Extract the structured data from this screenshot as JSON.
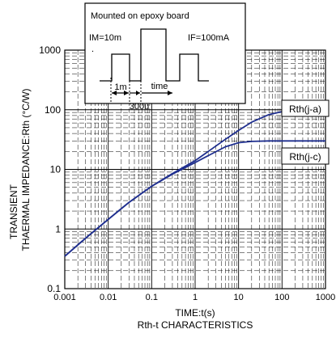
{
  "chart_data": {
    "type": "line",
    "title": "Rth-t CHARACTERISTICS",
    "xlabel": "TIME:t(s)",
    "ylabel_line1": "TRANSIENT",
    "ylabel_line2": "THAERMAL IMPEDANCE:Rth (°C/W)",
    "x_scale": "log",
    "y_scale": "log",
    "xlim": [
      0.001,
      1000
    ],
    "ylim": [
      0.1,
      1000
    ],
    "x_ticks": [
      {
        "value": 0.001,
        "label": "0.001"
      },
      {
        "value": 0.01,
        "label": "0.01"
      },
      {
        "value": 0.1,
        "label": "0.1"
      },
      {
        "value": 1,
        "label": "1"
      },
      {
        "value": 10,
        "label": "10"
      },
      {
        "value": 100,
        "label": "100"
      },
      {
        "value": 1000,
        "label": "1000"
      }
    ],
    "y_ticks": [
      {
        "value": 0.1,
        "label": "0.1"
      },
      {
        "value": 1,
        "label": "1"
      },
      {
        "value": 10,
        "label": "10"
      },
      {
        "value": 100,
        "label": "100"
      },
      {
        "value": 1000,
        "label": "1000"
      }
    ],
    "grid": true,
    "line_color": "#1f2f8f",
    "series": [
      {
        "name": "Rth(j-a)",
        "x": [
          0.001,
          0.003,
          0.01,
          0.03,
          0.1,
          0.3,
          1,
          2,
          5,
          10,
          20,
          50,
          100,
          200,
          500,
          1000
        ],
        "y": [
          0.35,
          0.7,
          1.45,
          2.8,
          5.2,
          8.5,
          14,
          20,
          32,
          45,
          62,
          83,
          93,
          97,
          98,
          98
        ]
      },
      {
        "name": "Rth(j-c)",
        "x": [
          0.001,
          0.003,
          0.01,
          0.03,
          0.1,
          0.3,
          1,
          2,
          5,
          10,
          20,
          50,
          100,
          200,
          500,
          1000
        ],
        "y": [
          0.35,
          0.7,
          1.45,
          2.8,
          5.2,
          8.3,
          13,
          17,
          24,
          28,
          29.5,
          30,
          30,
          30,
          30,
          30
        ]
      }
    ]
  },
  "inset": {
    "title": "Mounted on epoxy board",
    "im_label": "IM=10m",
    "if_label": "IF=100mA",
    "dot": ".",
    "label_1m": "1m",
    "label_time": "time",
    "label_300u": "300u"
  }
}
